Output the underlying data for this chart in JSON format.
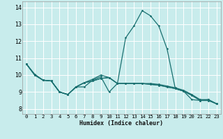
{
  "title": "",
  "xlabel": "Humidex (Indice chaleur)",
  "bg_color": "#c8ecec",
  "grid_color": "#ffffff",
  "line_color": "#1a7070",
  "xlim": [
    -0.5,
    23.5
  ],
  "ylim": [
    7.7,
    14.35
  ],
  "xticks": [
    0,
    1,
    2,
    3,
    4,
    5,
    6,
    7,
    8,
    9,
    10,
    11,
    12,
    13,
    14,
    15,
    16,
    17,
    18,
    19,
    20,
    21,
    22,
    23
  ],
  "yticks": [
    8,
    9,
    10,
    11,
    12,
    13,
    14
  ],
  "series": [
    [
      10.65,
      10.0,
      9.7,
      9.65,
      9.0,
      8.85,
      9.3,
      9.3,
      9.7,
      9.9,
      9.0,
      9.5,
      12.2,
      12.9,
      13.8,
      13.5,
      12.9,
      11.55,
      9.2,
      9.05,
      8.55,
      8.5,
      8.55,
      8.3
    ],
    [
      10.65,
      10.0,
      9.7,
      9.65,
      9.0,
      8.85,
      9.3,
      9.55,
      9.75,
      10.0,
      9.85,
      9.5,
      9.5,
      9.5,
      9.5,
      9.5,
      9.45,
      9.35,
      9.25,
      9.1,
      8.85,
      8.55,
      8.55,
      8.3
    ],
    [
      10.65,
      10.0,
      9.7,
      9.65,
      9.0,
      8.85,
      9.3,
      9.55,
      9.65,
      9.8,
      9.85,
      9.5,
      9.5,
      9.5,
      9.5,
      9.45,
      9.4,
      9.3,
      9.2,
      9.05,
      8.8,
      8.5,
      8.5,
      8.3
    ],
    [
      10.65,
      10.05,
      9.7,
      9.65,
      9.0,
      8.85,
      9.3,
      9.55,
      9.65,
      9.8,
      9.85,
      9.5,
      9.5,
      9.5,
      9.5,
      9.45,
      9.4,
      9.3,
      9.2,
      9.05,
      8.8,
      8.5,
      8.5,
      8.3
    ]
  ],
  "xlabel_fontsize": 6.0,
  "tick_fontsize": 5.2,
  "ytick_fontsize": 5.8
}
